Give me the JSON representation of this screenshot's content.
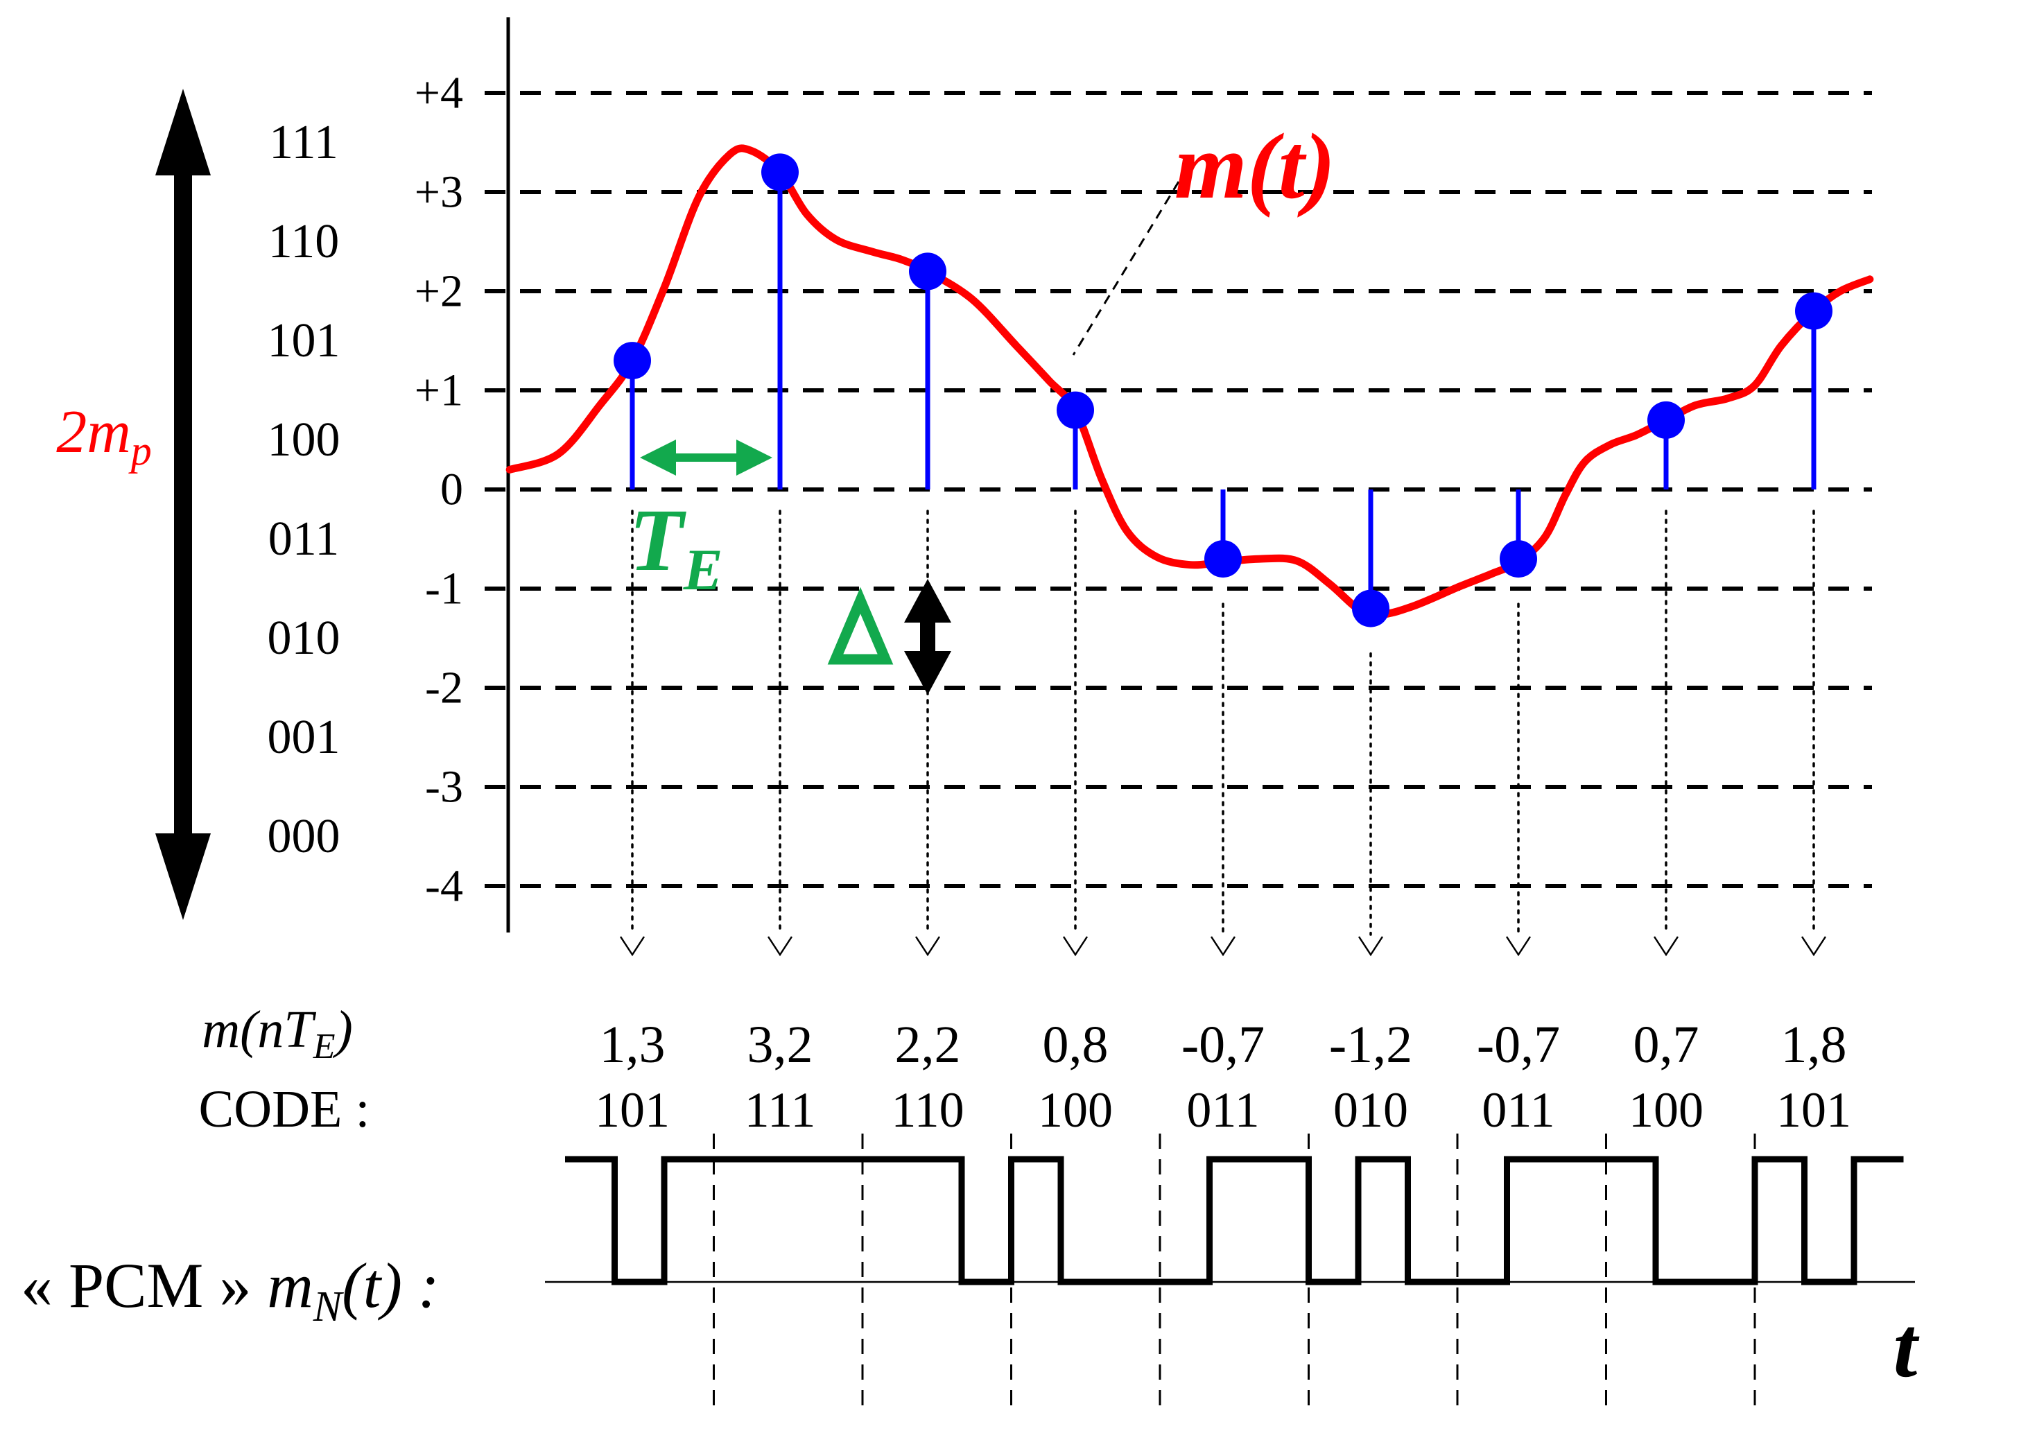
{
  "colors": {
    "background": "#FFFFFF",
    "signal_red": "#FF0000",
    "sample_blue": "#0000FF",
    "annotation_green": "#12A94D",
    "ink_black": "#000000"
  },
  "labels": {
    "signal": "m(t)",
    "range_main": "2m",
    "range_sub": "p",
    "period_main": "T",
    "period_sub": "E",
    "step": "Δ",
    "sample_row_main": "m(nT",
    "sample_row_sub": "E",
    "sample_row_end": ")",
    "code_row": "CODE :",
    "pcm_quote": "« PCM »",
    "pcm_sig_main": "m",
    "pcm_sig_sub": "N",
    "pcm_sig_end": "(t) :",
    "time_axis": "t"
  },
  "chart_data": {
    "type": "line",
    "xlabel": "t",
    "ylabel": "",
    "ylim": [
      -4.6,
      4.6
    ],
    "grid": "horizontal-dashed",
    "legend_position": "none",
    "y_ticks": [
      {
        "label": "+4",
        "v": 4
      },
      {
        "label": "+3",
        "v": 3
      },
      {
        "label": "+2",
        "v": 2
      },
      {
        "label": "+1",
        "v": 1
      },
      {
        "label": "0",
        "v": 0
      },
      {
        "label": "-1",
        "v": -1
      },
      {
        "label": "-2",
        "v": -2
      },
      {
        "label": "-3",
        "v": -3
      },
      {
        "label": "-4",
        "v": -4
      }
    ],
    "quantizer_codes_column": [
      "111",
      "110",
      "101",
      "100",
      "011",
      "010",
      "001",
      "000"
    ],
    "series": [
      {
        "name": "m(t)",
        "color": "#FF0000",
        "points_t_v": [
          [
            0.17,
            0.2
          ],
          [
            0.5,
            0.36
          ],
          [
            0.78,
            0.85
          ],
          [
            1.0,
            1.3
          ],
          [
            1.22,
            2.05
          ],
          [
            1.45,
            2.95
          ],
          [
            1.66,
            3.38
          ],
          [
            1.8,
            3.42
          ],
          [
            2.0,
            3.2
          ],
          [
            2.18,
            2.78
          ],
          [
            2.38,
            2.52
          ],
          [
            2.62,
            2.4
          ],
          [
            2.82,
            2.32
          ],
          [
            3.0,
            2.2
          ],
          [
            3.3,
            1.92
          ],
          [
            3.6,
            1.45
          ],
          [
            3.82,
            1.1
          ],
          [
            4.0,
            0.8
          ],
          [
            4.18,
            0.1
          ],
          [
            4.35,
            -0.42
          ],
          [
            4.55,
            -0.68
          ],
          [
            4.78,
            -0.76
          ],
          [
            5.0,
            -0.73
          ],
          [
            5.25,
            -0.7
          ],
          [
            5.5,
            -0.72
          ],
          [
            5.72,
            -0.95
          ],
          [
            5.93,
            -1.22
          ],
          [
            6.08,
            -1.26
          ],
          [
            6.3,
            -1.17
          ],
          [
            6.6,
            -0.98
          ],
          [
            6.82,
            -0.85
          ],
          [
            7.0,
            -0.73
          ],
          [
            7.18,
            -0.48
          ],
          [
            7.32,
            -0.05
          ],
          [
            7.45,
            0.28
          ],
          [
            7.62,
            0.45
          ],
          [
            7.8,
            0.55
          ],
          [
            8.0,
            0.7
          ],
          [
            8.2,
            0.85
          ],
          [
            8.42,
            0.92
          ],
          [
            8.6,
            1.05
          ],
          [
            8.78,
            1.45
          ],
          [
            9.0,
            1.8
          ],
          [
            9.18,
            2.0
          ],
          [
            9.38,
            2.12
          ]
        ]
      },
      {
        "name": "samples m(nTE)",
        "color": "#0000FF",
        "x_index": [
          1,
          2,
          3,
          4,
          5,
          6,
          7,
          8,
          9
        ],
        "values": [
          1.3,
          3.2,
          2.2,
          0.8,
          -0.7,
          -1.2,
          -0.7,
          0.7,
          1.8
        ]
      }
    ],
    "sample_table": {
      "values_display": [
        "1,3",
        "3,2",
        "2,2",
        "0,8",
        "-0,7",
        "-1,2",
        "-0,7",
        "0,7",
        "1,8"
      ],
      "codes": [
        "101",
        "111",
        "110",
        "100",
        "011",
        "010",
        "011",
        "100",
        "101"
      ]
    },
    "pcm_bits": "101111110100011010011100101"
  }
}
